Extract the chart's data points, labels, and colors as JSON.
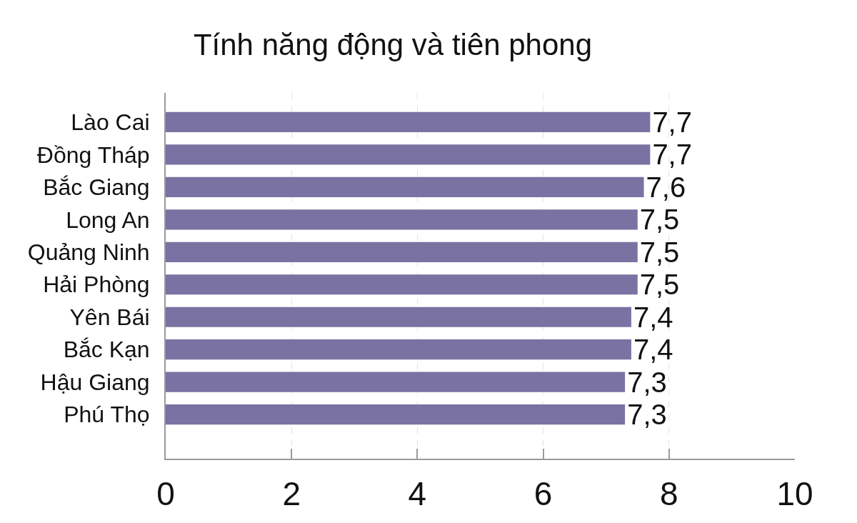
{
  "chart_data": {
    "type": "bar",
    "orientation": "horizontal",
    "title": "Tính năng động và tiên phong",
    "categories": [
      "Lào Cai",
      "Đồng Tháp",
      "Bắc Giang",
      "Long An",
      "Quảng Ninh",
      "Hải Phòng",
      "Yên Bái",
      "Bắc Kạn",
      "Hậu Giang",
      "Phú Thọ"
    ],
    "values": [
      7.7,
      7.7,
      7.6,
      7.5,
      7.5,
      7.5,
      7.4,
      7.4,
      7.3,
      7.3
    ],
    "value_labels": [
      "7,7",
      "7,7",
      "7,6",
      "7,5",
      "7,5",
      "7,5",
      "7,4",
      "7,4",
      "7,3",
      "7,3"
    ],
    "color": "#7972a2",
    "xlim": [
      0,
      10
    ],
    "xticks": [
      0,
      2,
      4,
      6,
      8,
      10
    ],
    "grid": "x"
  }
}
